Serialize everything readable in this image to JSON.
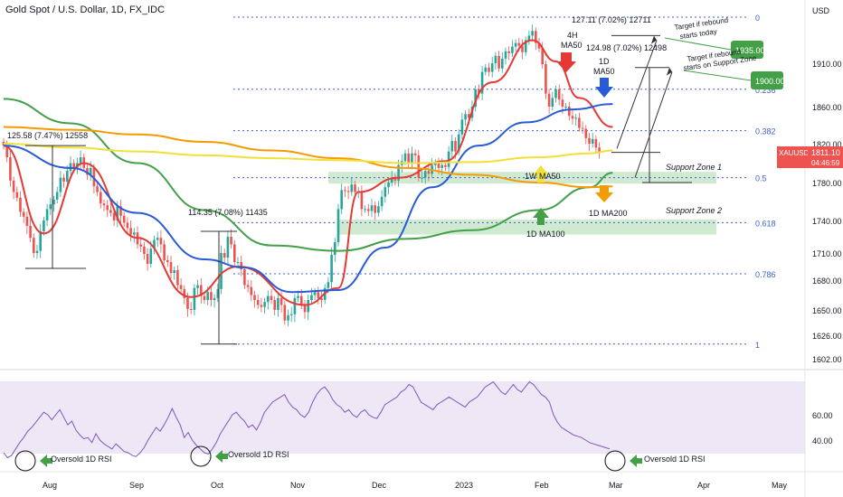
{
  "header": {
    "title": "Gold Spot / U.S. Dollar, 1D, FX_IDC",
    "currency": "USD",
    "ticker": "XAUUSD",
    "last_price": "1811.10",
    "countdown": "04:46:59"
  },
  "colors": {
    "candle_up": "#26a69a",
    "candle_down": "#ef5350",
    "ma50_4h": "#e53935",
    "ma50_1d": "#2a5bd7",
    "ma100_1d": "#43a047",
    "ma200_1d": "#f59b00",
    "ma50_1w": "#f2e03a",
    "rsi_line": "#7e57c2",
    "rsi_band": "#ede7f6",
    "fib_line": "#3f5fd8",
    "zone_fill": "#c8e6c9",
    "arrow_green": "#43a047"
  },
  "chart_data": {
    "type": "candlestick",
    "symbol": "XAUUSD",
    "timeframe": "1D",
    "ylim": [
      1593,
      1972
    ],
    "x_ticks": [
      "Aug",
      "Sep",
      "Oct",
      "Nov",
      "Dec",
      "2023",
      "Feb",
      "Mar",
      "Apr",
      "May"
    ],
    "y_ticks": [
      1602,
      1626,
      1650,
      1680,
      1710,
      1740,
      1780,
      1820,
      1860,
      1910
    ],
    "candles_close": [
      1818,
      1806,
      1782,
      1770,
      1764,
      1749,
      1744,
      1735,
      1724,
      1710,
      1712,
      1730,
      1740,
      1752,
      1757,
      1762,
      1770,
      1785,
      1781,
      1792,
      1800,
      1795,
      1800,
      1806,
      1795,
      1788,
      1795,
      1776,
      1770,
      1758,
      1756,
      1751,
      1748,
      1740,
      1755,
      1745,
      1738,
      1733,
      1727,
      1729,
      1718,
      1716,
      1709,
      1698,
      1714,
      1722,
      1724,
      1718,
      1702,
      1700,
      1688,
      1691,
      1675,
      1671,
      1662,
      1651,
      1650,
      1672,
      1675,
      1664,
      1660,
      1668,
      1660,
      1662,
      1671,
      1710,
      1705,
      1725,
      1718,
      1700,
      1700,
      1692,
      1675,
      1673,
      1665,
      1660,
      1655,
      1653,
      1658,
      1664,
      1660,
      1650,
      1662,
      1655,
      1640,
      1645,
      1646,
      1662,
      1664,
      1656,
      1648,
      1660,
      1665,
      1668,
      1662,
      1660,
      1672,
      1678,
      1708,
      1720,
      1752,
      1772,
      1771,
      1770,
      1778,
      1770,
      1770,
      1752,
      1752,
      1750,
      1756,
      1748,
      1755,
      1765,
      1775,
      1780,
      1785,
      1782,
      1798,
      1802,
      1810,
      1800,
      1810,
      1808,
      1785,
      1785,
      1792,
      1789,
      1798,
      1800,
      1795,
      1798,
      1796,
      1812,
      1823,
      1812,
      1830,
      1846,
      1852,
      1848,
      1860,
      1880,
      1875,
      1900,
      1905,
      1900,
      1910,
      1918,
      1904,
      1915,
      1923,
      1921,
      1928,
      1932,
      1929,
      1922,
      1935,
      1940,
      1945,
      1932,
      1926,
      1909,
      1875,
      1860,
      1870,
      1880,
      1868,
      1860,
      1860,
      1850,
      1847,
      1848,
      1837,
      1836,
      1826,
      1820,
      1825,
      1816,
      1811
    ],
    "candles_open_hint": "open equals previous close",
    "moving_averages": [
      {
        "name": "4H MA50",
        "points": [
          [
            0,
            1818
          ],
          [
            12,
            1728
          ],
          [
            24,
            1800
          ],
          [
            40,
            1724
          ],
          [
            56,
            1663
          ],
          [
            70,
            1695
          ],
          [
            90,
            1655
          ],
          [
            100,
            1672
          ],
          [
            106,
            1770
          ],
          [
            118,
            1785
          ],
          [
            132,
            1802
          ],
          [
            146,
            1888
          ],
          [
            158,
            1935
          ],
          [
            165,
            1912
          ],
          [
            172,
            1870
          ],
          [
            182,
            1838
          ]
        ]
      },
      {
        "name": "1D MA50",
        "points": [
          [
            0,
            1818
          ],
          [
            20,
            1795
          ],
          [
            40,
            1748
          ],
          [
            60,
            1703
          ],
          [
            72,
            1694
          ],
          [
            86,
            1668
          ],
          [
            100,
            1670
          ],
          [
            114,
            1715
          ],
          [
            128,
            1775
          ],
          [
            142,
            1818
          ],
          [
            156,
            1843
          ],
          [
            170,
            1857
          ],
          [
            182,
            1863
          ]
        ]
      },
      {
        "name": "1D MA100",
        "points": [
          [
            0,
            1869
          ],
          [
            20,
            1842
          ],
          [
            40,
            1800
          ],
          [
            60,
            1751
          ],
          [
            80,
            1717
          ],
          [
            100,
            1712
          ],
          [
            120,
            1723
          ],
          [
            140,
            1731
          ],
          [
            160,
            1751
          ],
          [
            175,
            1775
          ],
          [
            182,
            1790
          ]
        ]
      },
      {
        "name": "1D MA200",
        "points": [
          [
            0,
            1838
          ],
          [
            20,
            1835
          ],
          [
            40,
            1830
          ],
          [
            60,
            1822
          ],
          [
            80,
            1813
          ],
          [
            100,
            1805
          ],
          [
            120,
            1795
          ],
          [
            140,
            1788
          ],
          [
            160,
            1780
          ],
          [
            175,
            1775
          ],
          [
            182,
            1776
          ]
        ]
      },
      {
        "name": "1W MA50",
        "points": [
          [
            0,
            1820
          ],
          [
            20,
            1816
          ],
          [
            40,
            1812
          ],
          [
            60,
            1808
          ],
          [
            80,
            1805
          ],
          [
            100,
            1803
          ],
          [
            120,
            1800
          ],
          [
            140,
            1801
          ],
          [
            160,
            1806
          ],
          [
            175,
            1810
          ],
          [
            182,
            1813
          ]
        ]
      }
    ],
    "fib_levels": [
      {
        "label": "0",
        "price": 1960
      },
      {
        "label": "0.236",
        "price": 1880
      },
      {
        "label": "0.382",
        "price": 1834
      },
      {
        "label": "0.5",
        "price": 1785
      },
      {
        "label": "0.618",
        "price": 1738
      },
      {
        "label": "0.786",
        "price": 1687
      },
      {
        "label": "1",
        "price": 1617
      }
    ],
    "zones": [
      {
        "label": "Support Zone 1",
        "low": 1779,
        "high": 1791
      },
      {
        "label": "Support Zone 2",
        "low": 1727,
        "high": 1741
      }
    ],
    "targets": [
      {
        "label": "1935.00",
        "note": "Target if rebound starts today"
      },
      {
        "label": "1900.00",
        "note": "Target if rebound starts on Support Zone"
      }
    ],
    "rsi": {
      "name": "RSI 1D",
      "ylim": [
        15,
        95
      ],
      "y_ticks": [
        40,
        60
      ],
      "band": [
        30,
        70
      ],
      "values": [
        30,
        26,
        28,
        33,
        38,
        42,
        47,
        50,
        54,
        58,
        62,
        60,
        56,
        60,
        64,
        58,
        52,
        55,
        48,
        44,
        41,
        42,
        38,
        45,
        40,
        37,
        35,
        33,
        37,
        34,
        31,
        30,
        28,
        27,
        30,
        34,
        40,
        45,
        50,
        47,
        52,
        58,
        65,
        58,
        52,
        42,
        46,
        40,
        36,
        33,
        30,
        29,
        33,
        38,
        45,
        50,
        55,
        60,
        62,
        58,
        55,
        50,
        52,
        48,
        54,
        62,
        66,
        70,
        72,
        74,
        76,
        70,
        66,
        64,
        60,
        58,
        62,
        70,
        76,
        80,
        82,
        78,
        72,
        68,
        66,
        62,
        64,
        60,
        58,
        62,
        64,
        60,
        58,
        57,
        62,
        68,
        70,
        72,
        74,
        78,
        80,
        84,
        82,
        76,
        70,
        68,
        66,
        64,
        68,
        70,
        72,
        74,
        72,
        70,
        68,
        66,
        70,
        72,
        74,
        78,
        82,
        84,
        86,
        82,
        78,
        76,
        80,
        84,
        80,
        78,
        82,
        86,
        84,
        80,
        76,
        74,
        70,
        60,
        54,
        50,
        48,
        46,
        44,
        43,
        42,
        40,
        38,
        37,
        36,
        35,
        34,
        33
      ]
    },
    "annotations": {
      "range_left": "125.58 (7.47%) 12558",
      "range_mid": "114.35 (7.08%) 11435",
      "range_top": "127.11 (7.02%) 12711",
      "range_proj": "124.98 (7.02%) 12498",
      "target_today_line1": "Target if rebound",
      "target_today_line2": "starts today",
      "target_zone_line1": "Target if rebound",
      "target_zone_line2": "starts on Support Zone",
      "ma50_4h_line1": "4H",
      "ma50_4h_line2": "MA50",
      "ma50_1d_line1": "1D",
      "ma50_1d_line2": "MA50",
      "ma50_1w": "1W MA50",
      "ma200_1d": "1D MA200",
      "ma100_1d": "1D MA100",
      "support_zone_1": "Support Zone 1",
      "support_zone_2": "Support Zone 2",
      "oversold": "Oversold 1D RSI"
    }
  }
}
